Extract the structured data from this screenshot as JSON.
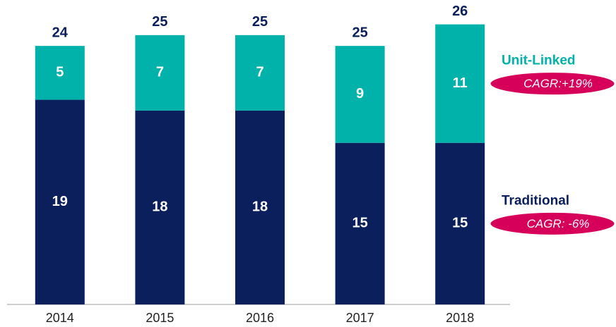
{
  "chart_data": {
    "type": "stacked_bar",
    "categories": [
      "2014",
      "2015",
      "2016",
      "2017",
      "2018"
    ],
    "series": [
      {
        "name": "Traditional",
        "color": "#0a1f5c",
        "values": [
          19,
          18,
          18,
          15,
          15
        ],
        "annotation": "CAGR: -6%"
      },
      {
        "name": "Unit-Linked",
        "color": "#00b2a9",
        "values": [
          5,
          7,
          7,
          9,
          11
        ],
        "annotation": "CAGR:+19%"
      }
    ],
    "totals": [
      24,
      25,
      25,
      25,
      26
    ],
    "annotation_color": "#d6005b",
    "ylim": [
      0,
      28
    ]
  }
}
